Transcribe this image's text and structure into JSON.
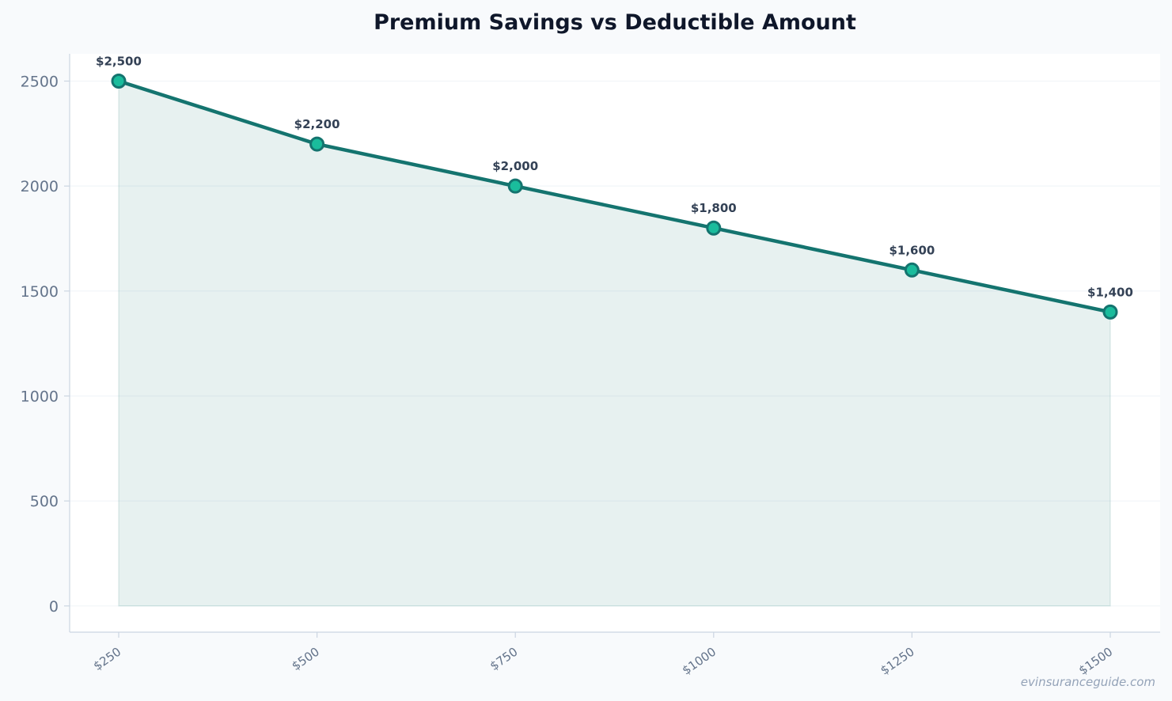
{
  "chart_data": {
    "type": "line",
    "title": "Premium Savings vs Deductible Amount",
    "xlabel": "",
    "ylabel": "",
    "categories": [
      "$250",
      "$500",
      "$750",
      "$1000",
      "$1250",
      "$1500"
    ],
    "series": [
      {
        "values": [
          2500,
          2200,
          2000,
          1800,
          1600,
          1400
        ],
        "data_labels": [
          "$2,500",
          "$2,200",
          "$2,000",
          "$1,800",
          "$1,600",
          "$1,400"
        ]
      }
    ],
    "y_ticks": [
      0,
      500,
      1000,
      1500,
      2000,
      2500
    ],
    "ylim": [
      -125,
      2630
    ],
    "grid": "horizontal",
    "area_fill": true,
    "colors": {
      "line": "#14746f",
      "marker_fill": "#1abc9c",
      "area_fill": "#14746f",
      "grid": "#f1f5f9",
      "axis": "#cbd5e1",
      "plot_background": "#ffffff",
      "page_background": "#f8fafc"
    }
  },
  "watermark": "evinsuranceguide.com"
}
